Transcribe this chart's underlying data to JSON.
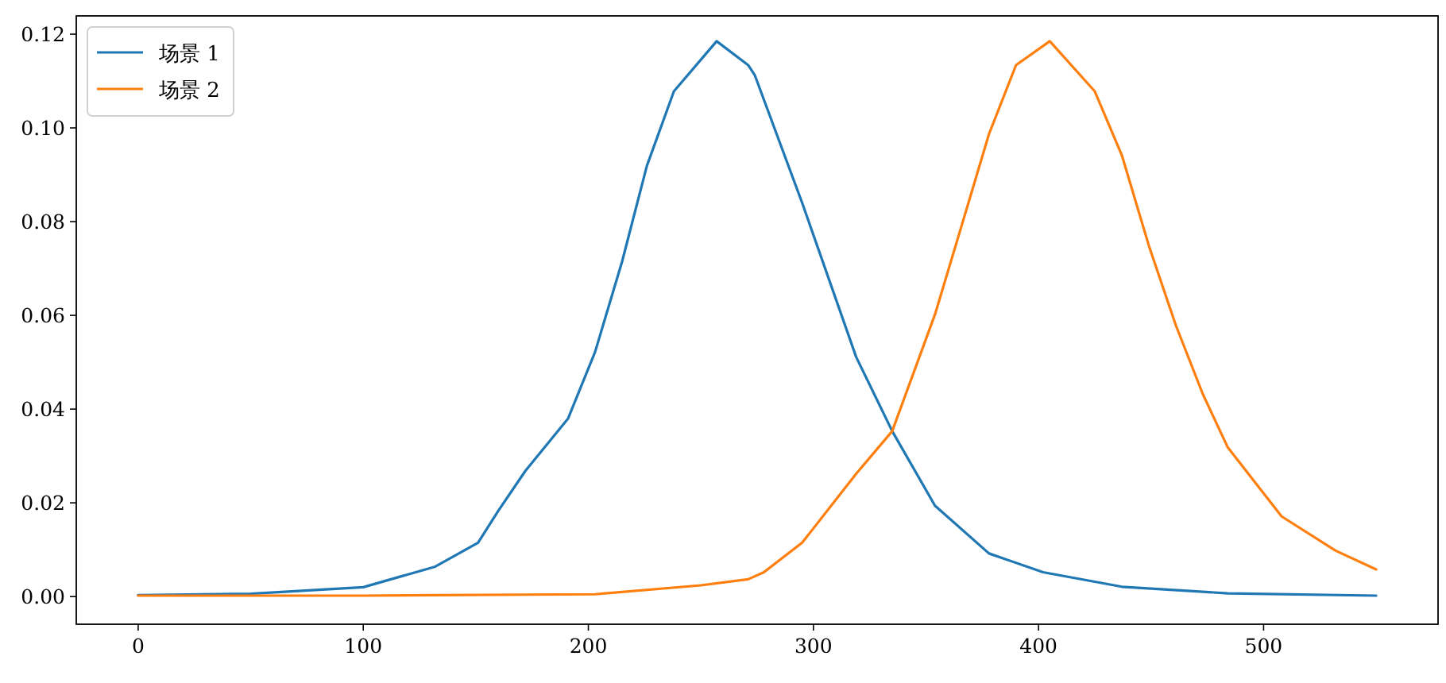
{
  "chart_data": {
    "type": "line",
    "legend": "top left",
    "marker": "none",
    "line_style": "solid",
    "xlim": [
      -27.5,
      577.5
    ],
    "ylim": [
      -0.0059,
      0.1239
    ],
    "xticks": [
      0,
      100,
      200,
      300,
      400,
      500
    ],
    "yticks": [
      {
        "value": 0,
        "label": "0.00"
      },
      {
        "value": 0.02,
        "label": "0.02"
      },
      {
        "value": 0.04,
        "label": "0.04"
      },
      {
        "value": 0.06,
        "label": "0.06"
      },
      {
        "value": 0.08,
        "label": "0.08"
      },
      {
        "value": 0.1,
        "label": "0.10"
      },
      {
        "value": 0.12,
        "label": "0.12"
      }
    ],
    "series": [
      {
        "name": "场景 1",
        "color": "#1f77b4",
        "x": [
          0,
          50,
          100,
          132,
          151,
          160,
          172,
          191,
          203,
          215,
          226,
          238,
          257,
          271,
          274,
          295,
          319,
          335,
          354,
          378,
          402,
          437,
          484,
          550
        ],
        "values": [
          0.0003,
          0.0006,
          0.002,
          0.0064,
          0.0115,
          0.0183,
          0.0268,
          0.038,
          0.0522,
          0.0715,
          0.0919,
          0.1078,
          0.1185,
          0.1134,
          0.1112,
          0.084,
          0.0511,
          0.0353,
          0.0194,
          0.0092,
          0.0052,
          0.0021,
          0.0007,
          0.0002
        ]
      },
      {
        "name": "场景 2",
        "color": "#ff7f0e",
        "x": [
          0,
          100,
          203,
          250,
          271,
          278,
          295,
          319,
          335,
          354,
          366,
          378,
          390,
          405,
          425,
          437,
          449,
          461,
          473,
          484,
          508,
          532,
          550
        ],
        "values": [
          0.0002,
          0.0002,
          0.0005,
          0.0024,
          0.0037,
          0.0052,
          0.0115,
          0.0262,
          0.0353,
          0.0602,
          0.0794,
          0.0987,
          0.1134,
          0.1185,
          0.1078,
          0.0942,
          0.0749,
          0.0579,
          0.0432,
          0.0319,
          0.0171,
          0.0098,
          0.0058
        ]
      }
    ]
  }
}
